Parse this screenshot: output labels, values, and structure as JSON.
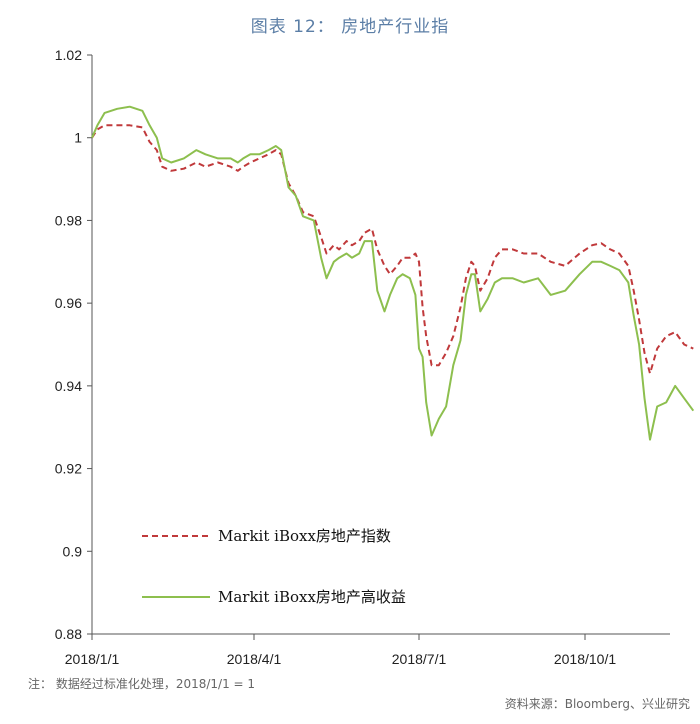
{
  "page": {
    "title": "图表 12： 房地产行业指",
    "note": "注：  数据经过标准化处理，2018/1/1 = 1",
    "source": "资料来源：Bloomberg、兴业研究"
  },
  "chart_data": {
    "type": "line",
    "title": "图表 12： 房地产行业指",
    "x_tick_labels": [
      "2018/1/1",
      "2018/4/1",
      "2018/7/1",
      "2018/10/1"
    ],
    "y_tick_labels": [
      "1.02",
      "1",
      "0.98",
      "0.96",
      "0.94",
      "0.92",
      "0.9",
      "0.88"
    ],
    "ylim": [
      0.88,
      1.02
    ],
    "xlim": [
      "2018-01-01",
      "2018-11-30"
    ],
    "grid": false,
    "legend_position": "lower-left",
    "series": [
      {
        "name": "Markit iBoxx房地产指数",
        "color": "#c0393b",
        "dash": "dashed",
        "points": [
          [
            "2018-01-01",
            1.0
          ],
          [
            "2018-01-04",
            1.002
          ],
          [
            "2018-01-08",
            1.003
          ],
          [
            "2018-01-15",
            1.003
          ],
          [
            "2018-01-22",
            1.003
          ],
          [
            "2018-01-29",
            1.0025
          ],
          [
            "2018-02-02",
            0.999
          ],
          [
            "2018-02-06",
            0.997
          ],
          [
            "2018-02-09",
            0.993
          ],
          [
            "2018-02-14",
            0.992
          ],
          [
            "2018-02-21",
            0.9925
          ],
          [
            "2018-02-28",
            0.994
          ],
          [
            "2018-03-05",
            0.993
          ],
          [
            "2018-03-12",
            0.994
          ],
          [
            "2018-03-19",
            0.993
          ],
          [
            "2018-03-23",
            0.992
          ],
          [
            "2018-03-26",
            0.993
          ],
          [
            "2018-03-30",
            0.994
          ],
          [
            "2018-04-04",
            0.995
          ],
          [
            "2018-04-09",
            0.996
          ],
          [
            "2018-04-13",
            0.997
          ],
          [
            "2018-04-16",
            0.996
          ],
          [
            "2018-04-20",
            0.989
          ],
          [
            "2018-04-24",
            0.986
          ],
          [
            "2018-04-28",
            0.982
          ],
          [
            "2018-05-04",
            0.981
          ],
          [
            "2018-05-08",
            0.976
          ],
          [
            "2018-05-11",
            0.972
          ],
          [
            "2018-05-15",
            0.974
          ],
          [
            "2018-05-18",
            0.973
          ],
          [
            "2018-05-22",
            0.975
          ],
          [
            "2018-05-25",
            0.974
          ],
          [
            "2018-05-29",
            0.975
          ],
          [
            "2018-06-01",
            0.977
          ],
          [
            "2018-06-05",
            0.978
          ],
          [
            "2018-06-08",
            0.973
          ],
          [
            "2018-06-12",
            0.969
          ],
          [
            "2018-06-15",
            0.967
          ],
          [
            "2018-06-19",
            0.969
          ],
          [
            "2018-06-22",
            0.971
          ],
          [
            "2018-06-26",
            0.971
          ],
          [
            "2018-06-29",
            0.972
          ],
          [
            "2018-07-01",
            0.97
          ],
          [
            "2018-07-03",
            0.959
          ],
          [
            "2018-07-05",
            0.952
          ],
          [
            "2018-07-08",
            0.945
          ],
          [
            "2018-07-12",
            0.945
          ],
          [
            "2018-07-16",
            0.948
          ],
          [
            "2018-07-20",
            0.952
          ],
          [
            "2018-07-24",
            0.959
          ],
          [
            "2018-07-27",
            0.966
          ],
          [
            "2018-07-30",
            0.97
          ],
          [
            "2018-08-01",
            0.969
          ],
          [
            "2018-08-04",
            0.963
          ],
          [
            "2018-08-08",
            0.966
          ],
          [
            "2018-08-12",
            0.971
          ],
          [
            "2018-08-16",
            0.973
          ],
          [
            "2018-08-22",
            0.973
          ],
          [
            "2018-08-28",
            0.972
          ],
          [
            "2018-09-05",
            0.972
          ],
          [
            "2018-09-12",
            0.97
          ],
          [
            "2018-09-20",
            0.969
          ],
          [
            "2018-09-28",
            0.972
          ],
          [
            "2018-10-05",
            0.974
          ],
          [
            "2018-10-10",
            0.9745
          ],
          [
            "2018-10-15",
            0.973
          ],
          [
            "2018-10-20",
            0.972
          ],
          [
            "2018-10-25",
            0.969
          ],
          [
            "2018-10-28",
            0.963
          ],
          [
            "2018-10-31",
            0.956
          ],
          [
            "2018-11-03",
            0.948
          ],
          [
            "2018-11-06",
            0.943
          ],
          [
            "2018-11-10",
            0.949
          ],
          [
            "2018-11-15",
            0.952
          ],
          [
            "2018-11-20",
            0.953
          ],
          [
            "2018-11-25",
            0.95
          ],
          [
            "2018-11-30",
            0.949
          ]
        ]
      },
      {
        "name": "Markit iBoxx房地产高收益",
        "color": "#8dbf4e",
        "dash": "solid",
        "points": [
          [
            "2018-01-01",
            1.0
          ],
          [
            "2018-01-04",
            1.003
          ],
          [
            "2018-01-08",
            1.006
          ],
          [
            "2018-01-15",
            1.007
          ],
          [
            "2018-01-22",
            1.0075
          ],
          [
            "2018-01-29",
            1.0065
          ],
          [
            "2018-02-02",
            1.003
          ],
          [
            "2018-02-06",
            1.0
          ],
          [
            "2018-02-09",
            0.995
          ],
          [
            "2018-02-14",
            0.994
          ],
          [
            "2018-02-21",
            0.995
          ],
          [
            "2018-02-28",
            0.997
          ],
          [
            "2018-03-05",
            0.996
          ],
          [
            "2018-03-12",
            0.995
          ],
          [
            "2018-03-19",
            0.995
          ],
          [
            "2018-03-23",
            0.994
          ],
          [
            "2018-03-26",
            0.995
          ],
          [
            "2018-03-30",
            0.996
          ],
          [
            "2018-04-04",
            0.996
          ],
          [
            "2018-04-09",
            0.997
          ],
          [
            "2018-04-13",
            0.998
          ],
          [
            "2018-04-16",
            0.997
          ],
          [
            "2018-04-20",
            0.988
          ],
          [
            "2018-04-24",
            0.986
          ],
          [
            "2018-04-28",
            0.981
          ],
          [
            "2018-05-04",
            0.98
          ],
          [
            "2018-05-08",
            0.971
          ],
          [
            "2018-05-11",
            0.966
          ],
          [
            "2018-05-15",
            0.97
          ],
          [
            "2018-05-18",
            0.971
          ],
          [
            "2018-05-22",
            0.972
          ],
          [
            "2018-05-25",
            0.971
          ],
          [
            "2018-05-29",
            0.972
          ],
          [
            "2018-06-01",
            0.975
          ],
          [
            "2018-06-05",
            0.975
          ],
          [
            "2018-06-08",
            0.963
          ],
          [
            "2018-06-12",
            0.958
          ],
          [
            "2018-06-15",
            0.962
          ],
          [
            "2018-06-19",
            0.966
          ],
          [
            "2018-06-22",
            0.967
          ],
          [
            "2018-06-26",
            0.966
          ],
          [
            "2018-06-29",
            0.962
          ],
          [
            "2018-07-01",
            0.949
          ],
          [
            "2018-07-03",
            0.947
          ],
          [
            "2018-07-05",
            0.936
          ],
          [
            "2018-07-08",
            0.928
          ],
          [
            "2018-07-12",
            0.932
          ],
          [
            "2018-07-16",
            0.935
          ],
          [
            "2018-07-20",
            0.945
          ],
          [
            "2018-07-24",
            0.951
          ],
          [
            "2018-07-27",
            0.962
          ],
          [
            "2018-07-30",
            0.967
          ],
          [
            "2018-08-01",
            0.967
          ],
          [
            "2018-08-04",
            0.958
          ],
          [
            "2018-08-08",
            0.961
          ],
          [
            "2018-08-12",
            0.965
          ],
          [
            "2018-08-16",
            0.966
          ],
          [
            "2018-08-22",
            0.966
          ],
          [
            "2018-08-28",
            0.965
          ],
          [
            "2018-09-05",
            0.966
          ],
          [
            "2018-09-12",
            0.962
          ],
          [
            "2018-09-20",
            0.963
          ],
          [
            "2018-09-28",
            0.967
          ],
          [
            "2018-10-05",
            0.97
          ],
          [
            "2018-10-10",
            0.97
          ],
          [
            "2018-10-15",
            0.969
          ],
          [
            "2018-10-20",
            0.968
          ],
          [
            "2018-10-25",
            0.965
          ],
          [
            "2018-10-28",
            0.957
          ],
          [
            "2018-10-31",
            0.95
          ],
          [
            "2018-11-03",
            0.937
          ],
          [
            "2018-11-06",
            0.927
          ],
          [
            "2018-11-10",
            0.935
          ],
          [
            "2018-11-15",
            0.936
          ],
          [
            "2018-11-20",
            0.94
          ],
          [
            "2018-11-25",
            0.937
          ],
          [
            "2018-11-30",
            0.934
          ]
        ]
      }
    ]
  }
}
